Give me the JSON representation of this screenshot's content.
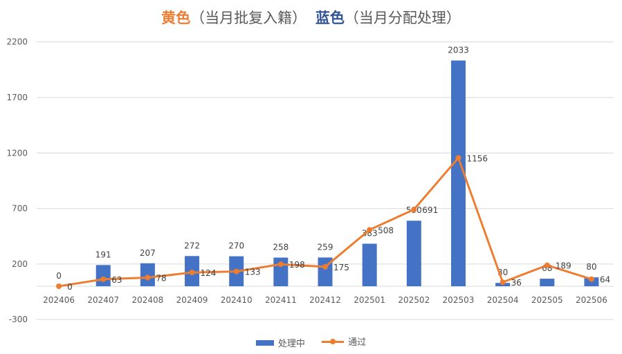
{
  "colors": {
    "bar": "#4472C4",
    "line": "#ED7D31",
    "title_blue": "#2F5597",
    "grid": "#D9D9D9"
  },
  "title": {
    "part1_key": "黄色",
    "part1_rest": "（当月批复入籍）",
    "part2_key": "蓝色",
    "part2_rest": "（当月分配处理）"
  },
  "chart_data": {
    "type": "bar",
    "categories": [
      "202406",
      "202407",
      "202408",
      "202409",
      "202410",
      "202411",
      "202412",
      "202501",
      "202502",
      "202503",
      "202504",
      "202505",
      "202506"
    ],
    "series": [
      {
        "name": "处理中",
        "kind": "bar",
        "values": [
          0,
          191,
          207,
          272,
          270,
          258,
          259,
          383,
          590,
          2033,
          30,
          68,
          80
        ]
      },
      {
        "name": "通过",
        "kind": "line",
        "values": [
          0,
          63,
          78,
          124,
          133,
          198,
          175,
          508,
          691,
          1156,
          36,
          189,
          64
        ]
      }
    ],
    "yticks": [
      "2200",
      "1700",
      "1200",
      "700",
      "200",
      "-300"
    ],
    "ylim": [
      -300,
      2200
    ],
    "grid": true,
    "legend": "bottom"
  }
}
